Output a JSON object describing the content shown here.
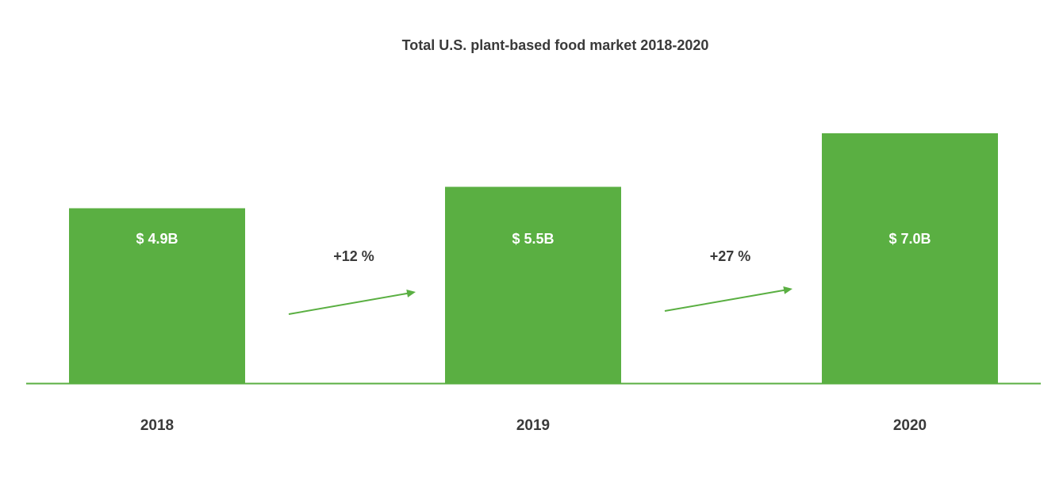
{
  "chart_data": {
    "type": "bar",
    "title": "Total U.S. plant-based food market 2018-2020",
    "categories": [
      "2018",
      "2019",
      "2020"
    ],
    "values": [
      4.9,
      5.5,
      7.0
    ],
    "value_labels": [
      "$ 4.9B",
      "$ 5.5B",
      "$ 7.0B"
    ],
    "unit": "USD billions",
    "growth_annotations": [
      {
        "from": "2018",
        "to": "2019",
        "label": "+12 %"
      },
      {
        "from": "2019",
        "to": "2020",
        "label": "+27 %"
      }
    ],
    "xlabel": "",
    "ylabel": "",
    "ylim": [
      0,
      7.0
    ],
    "grid": false,
    "colors": {
      "bar": "#5aaf42",
      "text": "#3a3a3a",
      "label": "#ffffff"
    }
  }
}
